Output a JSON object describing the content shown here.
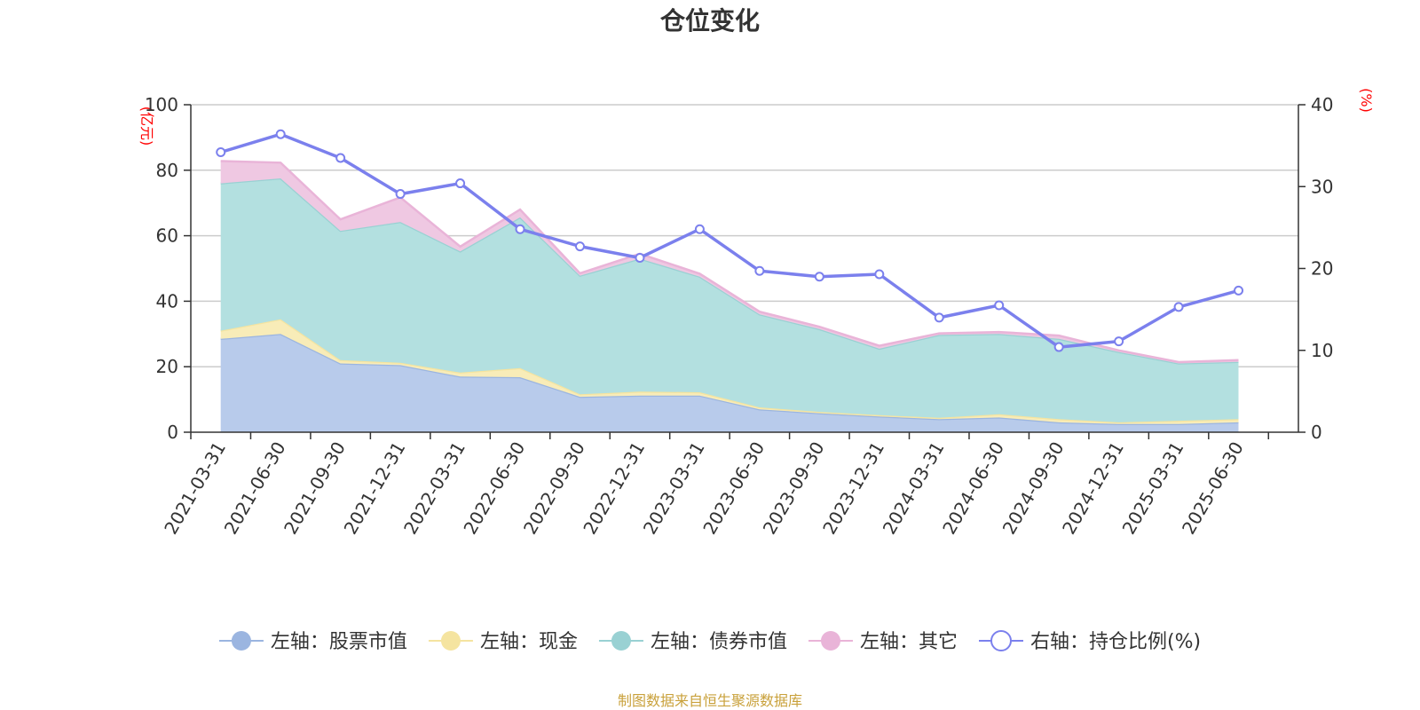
{
  "chart_data": {
    "type": "area",
    "title": "仓位变化",
    "y_left_unit": "(亿元)",
    "y_right_unit": "(%)",
    "ylim_left": [
      0,
      100
    ],
    "yticks_left": [
      0,
      20,
      40,
      60,
      80,
      100
    ],
    "ylim_right": [
      0,
      40
    ],
    "yticks_right": [
      0,
      10,
      20,
      30,
      40
    ],
    "categories": [
      "2021-03-31",
      "2021-06-30",
      "2021-09-30",
      "2021-12-31",
      "2022-03-31",
      "2022-06-30",
      "2022-09-30",
      "2022-12-31",
      "2023-03-31",
      "2023-06-30",
      "2023-09-30",
      "2023-12-31",
      "2024-03-31",
      "2024-06-30",
      "2024-09-30",
      "2024-12-31",
      "2025-03-31",
      "2025-06-30"
    ],
    "stacked_series": [
      {
        "name": "左轴：股票市值",
        "axis": "left",
        "color": "#9bb5e0",
        "fill": "#b8cbeb",
        "values": [
          28.5,
          30.0,
          21.0,
          20.5,
          17.0,
          16.8,
          10.8,
          11.2,
          11.2,
          7.0,
          5.8,
          4.8,
          4.0,
          4.5,
          3.0,
          2.5,
          2.5,
          3.0
        ]
      },
      {
        "name": "左轴：现金",
        "axis": "left",
        "color": "#f5e4a0",
        "fill": "#f8ecb8",
        "values": [
          2.5,
          4.5,
          1.0,
          0.7,
          1.2,
          2.8,
          0.8,
          1.2,
          1.0,
          0.6,
          0.4,
          0.4,
          0.4,
          1.0,
          1.0,
          0.5,
          1.0,
          1.0
        ]
      },
      {
        "name": "左轴：债券市值",
        "axis": "left",
        "color": "#99d1d3",
        "fill": "#b3e0e0",
        "values": [
          45.0,
          43.0,
          39.5,
          43.0,
          37.0,
          46.0,
          36.2,
          40.6,
          35.3,
          28.4,
          25.3,
          20.3,
          25.3,
          24.5,
          24.5,
          21.5,
          17.5,
          17.5
        ]
      },
      {
        "name": "左轴：其它",
        "axis": "left",
        "color": "#e9b4d8",
        "fill": "#efc8e2",
        "values": [
          6.8,
          4.8,
          3.5,
          7.5,
          1.5,
          2.4,
          0.7,
          1.5,
          0.9,
          0.8,
          0.7,
          0.9,
          0.5,
          0.6,
          1.0,
          0.5,
          0.4,
          0.5
        ]
      }
    ],
    "line_series": {
      "name": "右轴：持仓比例(%)",
      "axis": "right",
      "color": "#7b80ed",
      "values": [
        34.2,
        36.4,
        33.5,
        29.1,
        30.4,
        24.8,
        22.7,
        21.3,
        24.8,
        19.7,
        19.0,
        19.3,
        14.0,
        15.5,
        10.4,
        11.1,
        15.3,
        17.3
      ]
    },
    "legend_position": "bottom-center",
    "grid": true
  },
  "source_note": "制图数据来自恒生聚源数据库"
}
